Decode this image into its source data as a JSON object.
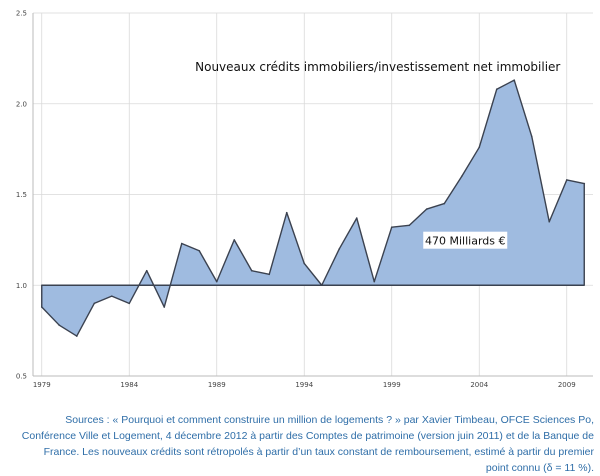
{
  "chart_data": {
    "type": "area",
    "title": "",
    "xlabel": "",
    "ylabel": "",
    "xlim": [
      1978.5,
      2010.5
    ],
    "ylim": [
      0.5,
      2.5
    ],
    "baseline": 1.0,
    "y_ticks": [
      "0.5",
      "1.0",
      "1.5",
      "2.0",
      "2.5"
    ],
    "x_ticks": [
      {
        "x": 1979,
        "label": "1979"
      },
      {
        "x": 1984,
        "label": "1984"
      },
      {
        "x": 1989,
        "label": "1989"
      },
      {
        "x": 1994,
        "label": "1994"
      },
      {
        "x": 1999,
        "label": "1999"
      },
      {
        "x": 2004,
        "label": "2004"
      },
      {
        "x": 2009,
        "label": "2009"
      }
    ],
    "x": [
      1979,
      1980,
      1981,
      1982,
      1983,
      1984,
      1985,
      1986,
      1987,
      1988,
      1989,
      1990,
      1991,
      1992,
      1993,
      1994,
      1995,
      1996,
      1997,
      1998,
      1999,
      2000,
      2001,
      2002,
      2003,
      2004,
      2005,
      2006,
      2007,
      2008,
      2009,
      2010
    ],
    "series": [
      {
        "values": [
          0.88,
          0.78,
          0.72,
          0.9,
          0.94,
          0.9,
          1.08,
          0.88,
          1.23,
          1.19,
          1.02,
          1.25,
          1.08,
          1.06,
          1.4,
          1.12,
          1.0,
          1.2,
          1.37,
          1.02,
          1.32,
          1.33,
          1.42,
          1.45,
          1.6,
          1.76,
          2.08,
          2.13,
          1.82,
          1.35,
          1.58,
          1.56
        ],
        "color": "#9fbbe0",
        "line_color": "#3b4250"
      }
    ],
    "annotations": [
      {
        "text": "Nouveaux crédits immobiliers/investissement net immobilier",
        "x": 1998.2,
        "y": 2.18
      },
      {
        "text": "470 Milliards €",
        "x": 2003.2,
        "y": 1.24
      }
    ],
    "grid": true,
    "legend": "none"
  },
  "source_note": "Sources : « Pourquoi et comment construire un million de logements ? » par Xavier Timbeau, OFCE Sciences Po, Conférence Ville et Logement, 4 décembre 2012 à partir des Comptes de patrimoine (version juin 2011) et de la Banque de France. Les nouveaux crédits sont rétropolés à partir d’un taux constant de remboursement, estimé à partir du premier point connu (δ = 11 %)."
}
